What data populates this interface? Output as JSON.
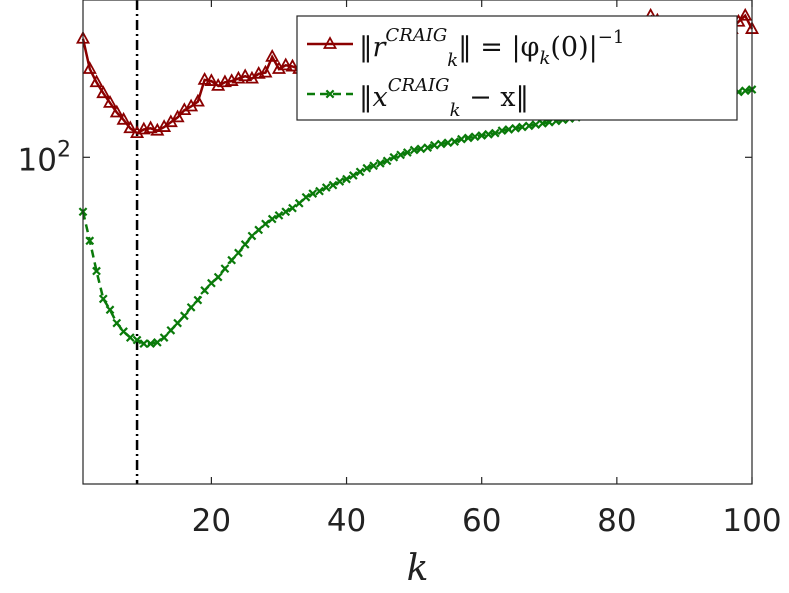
{
  "chart_data": {
    "type": "line",
    "title": "",
    "xlabel": "k",
    "ylabel": "",
    "xlim": [
      1,
      100
    ],
    "ylim_log10": [
      1.73,
      2.13
    ],
    "yscale": "log",
    "x_ticks": [
      20,
      40,
      60,
      80,
      100
    ],
    "x_tick_labels": [
      "20",
      "40",
      "60",
      "80",
      "100"
    ],
    "y_ticks": [
      100
    ],
    "y_tick_labels": [
      {
        "base": "10",
        "exp": "2"
      }
    ],
    "grid": false,
    "legend_position": "top-right",
    "vertical_line": {
      "x": 9,
      "style": "dash-dot",
      "color": "#000000"
    },
    "series": [
      {
        "id": "r",
        "color": "#8b0000",
        "line_style": "solid",
        "marker": "triangle",
        "legend": {
          "norm_left": "‖",
          "var": "r",
          "sub": "k",
          "sup": "CRAIG",
          "rest": "‖ = |φ",
          "rest_sub": "k",
          "rest2": "(0)|",
          "rest_sup": "−1"
        },
        "x": [
          1,
          2,
          3,
          4,
          5,
          6,
          7,
          8,
          9,
          10,
          11,
          12,
          13,
          14,
          15,
          16,
          17,
          18,
          19,
          20,
          21,
          22,
          23,
          24,
          25,
          26,
          27,
          28,
          29,
          30,
          31,
          32,
          33,
          34,
          35,
          85,
          86,
          97,
          98,
          99,
          100
        ],
        "log10_y": [
          2.098,
          2.073,
          2.062,
          2.053,
          2.045,
          2.037,
          2.031,
          2.024,
          2.02,
          2.023,
          2.024,
          2.022,
          2.025,
          2.029,
          2.033,
          2.039,
          2.042,
          2.046,
          2.064,
          2.063,
          2.059,
          2.062,
          2.063,
          2.065,
          2.067,
          2.065,
          2.069,
          2.07,
          2.083,
          2.073,
          2.076,
          2.075,
          2.073,
          2.08,
          2.09,
          2.117,
          2.113,
          2.106,
          2.112,
          2.117,
          2.106
        ]
      },
      {
        "id": "x",
        "color": "#0a7a0a",
        "line_style": "dashed",
        "marker": "x",
        "legend": {
          "norm_left": "‖",
          "var": "x",
          "sub": "k",
          "sup": "CRAIG",
          "rest": " − x‖"
        },
        "x": [
          1,
          2,
          3,
          4,
          5,
          6,
          7,
          8,
          9,
          10,
          11,
          12,
          13,
          14,
          15,
          16,
          17,
          18,
          19,
          20,
          21,
          22,
          23,
          24,
          25,
          26,
          27,
          28,
          29,
          30,
          31,
          32,
          33,
          34,
          35,
          36,
          37,
          38,
          39,
          40,
          41,
          42,
          43,
          44,
          45,
          46,
          47,
          48,
          49,
          50,
          51,
          52,
          53,
          54,
          55,
          56,
          57,
          58,
          59,
          60,
          61,
          62,
          63,
          64,
          65,
          66,
          67,
          68,
          69,
          70,
          71,
          72,
          73,
          74,
          75,
          76,
          77,
          78,
          79,
          80,
          81,
          82,
          83,
          84,
          85,
          86,
          87,
          88,
          89,
          90,
          91,
          92,
          93,
          94,
          95,
          96,
          97,
          98,
          99,
          100
        ],
        "log10_y": [
          1.955,
          1.931,
          1.906,
          1.883,
          1.874,
          1.863,
          1.856,
          1.851,
          1.849,
          1.846,
          1.846,
          1.847,
          1.851,
          1.857,
          1.863,
          1.869,
          1.876,
          1.882,
          1.89,
          1.896,
          1.901,
          1.908,
          1.915,
          1.921,
          1.928,
          1.935,
          1.94,
          1.945,
          1.949,
          1.952,
          1.955,
          1.958,
          1.962,
          1.967,
          1.97,
          1.972,
          1.975,
          1.977,
          1.98,
          1.982,
          1.985,
          1.988,
          1.991,
          1.993,
          1.995,
          1.997,
          2.0,
          2.002,
          2.004,
          2.006,
          2.007,
          2.008,
          2.01,
          2.011,
          2.012,
          2.013,
          2.015,
          2.016,
          2.017,
          2.018,
          2.019,
          2.02,
          2.022,
          2.023,
          2.024,
          2.025,
          2.026,
          2.027,
          2.028,
          2.029,
          2.03,
          2.031,
          2.032,
          2.033,
          2.034,
          2.035,
          2.036,
          2.037,
          2.038,
          2.039,
          2.04,
          2.041,
          2.042,
          2.043,
          2.044,
          2.045,
          2.046,
          2.047,
          2.048,
          2.048,
          2.049,
          2.05,
          2.051,
          2.052,
          2.052,
          2.053,
          2.054,
          2.054,
          2.055,
          2.056
        ]
      }
    ]
  }
}
